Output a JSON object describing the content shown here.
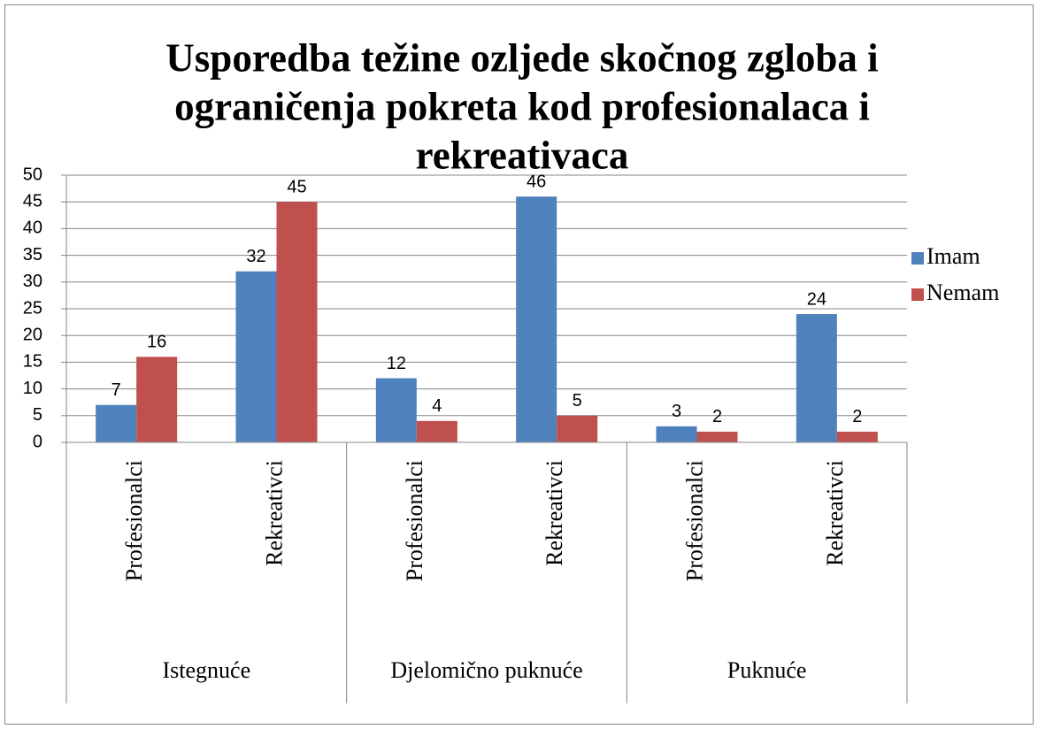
{
  "chart_data": {
    "type": "bar",
    "title": [
      "Usporedba težine ozljede skočnog zgloba i",
      "ograničenja pokreta kod profesionalaca i",
      "rekreativaca"
    ],
    "categories": [
      "Profesionalci",
      "Rekreativci",
      "Profesionalci",
      "Rekreativci",
      "Profesionalci",
      "Rekreativci"
    ],
    "groups": [
      "Istegnuće",
      "Djelomično puknuće",
      "Puknuće"
    ],
    "series": [
      {
        "name": "Imam",
        "color": "#4f81bd",
        "values": [
          7,
          32,
          12,
          46,
          3,
          24
        ]
      },
      {
        "name": "Nemam",
        "color": "#c0504d",
        "values": [
          16,
          45,
          4,
          5,
          2,
          2
        ]
      }
    ],
    "ylim": [
      0,
      50
    ],
    "yticks": [
      0,
      5,
      10,
      15,
      20,
      25,
      30,
      35,
      40,
      45,
      50
    ],
    "grid": true,
    "legend": "right"
  }
}
